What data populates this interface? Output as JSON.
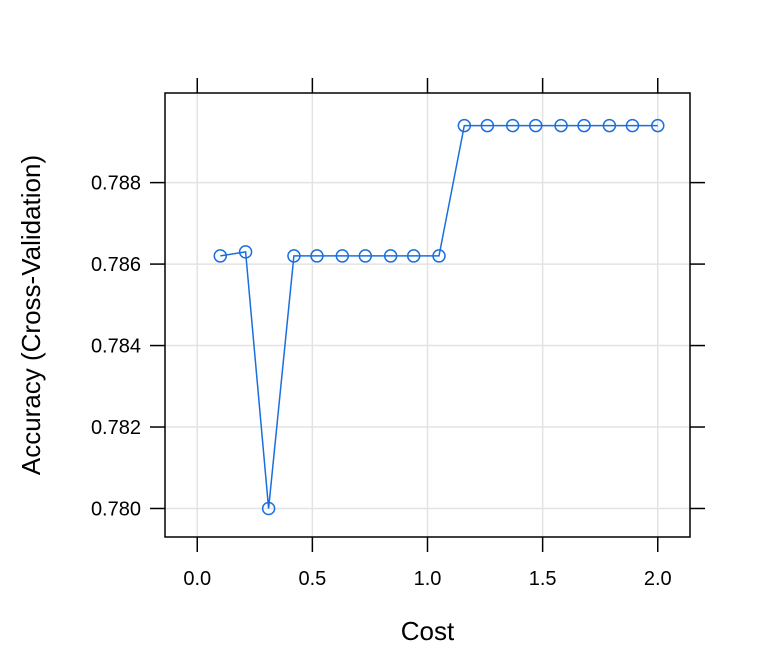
{
  "chart_data": {
    "type": "line",
    "title": "",
    "xlabel": "Cost",
    "ylabel": "Accuracy (Cross-Validation)",
    "xlim": [
      -0.14,
      2.14
    ],
    "ylim": [
      0.7793,
      0.7902
    ],
    "x_ticks": [
      0.0,
      0.5,
      1.0,
      1.5,
      2.0
    ],
    "x_tick_labels": [
      "0.0",
      "0.5",
      "1.0",
      "1.5",
      "2.0"
    ],
    "y_ticks": [
      0.78,
      0.782,
      0.784,
      0.786,
      0.788
    ],
    "y_tick_labels": [
      "0.780",
      "0.782",
      "0.784",
      "0.786",
      "0.788"
    ],
    "grid": true,
    "series": [
      {
        "color": "#1a6fdf",
        "marker": "open-circle",
        "x": [
          0.1,
          0.21,
          0.31,
          0.42,
          0.52,
          0.63,
          0.73,
          0.84,
          0.94,
          1.05,
          1.16,
          1.26,
          1.37,
          1.47,
          1.58,
          1.68,
          1.79,
          1.89,
          2.0
        ],
        "y": [
          0.7862,
          0.7863,
          0.78,
          0.7862,
          0.7862,
          0.7862,
          0.7862,
          0.7862,
          0.7862,
          0.7862,
          0.7894,
          0.7894,
          0.7894,
          0.7894,
          0.7894,
          0.7894,
          0.7894,
          0.7894,
          0.7894
        ]
      }
    ]
  }
}
